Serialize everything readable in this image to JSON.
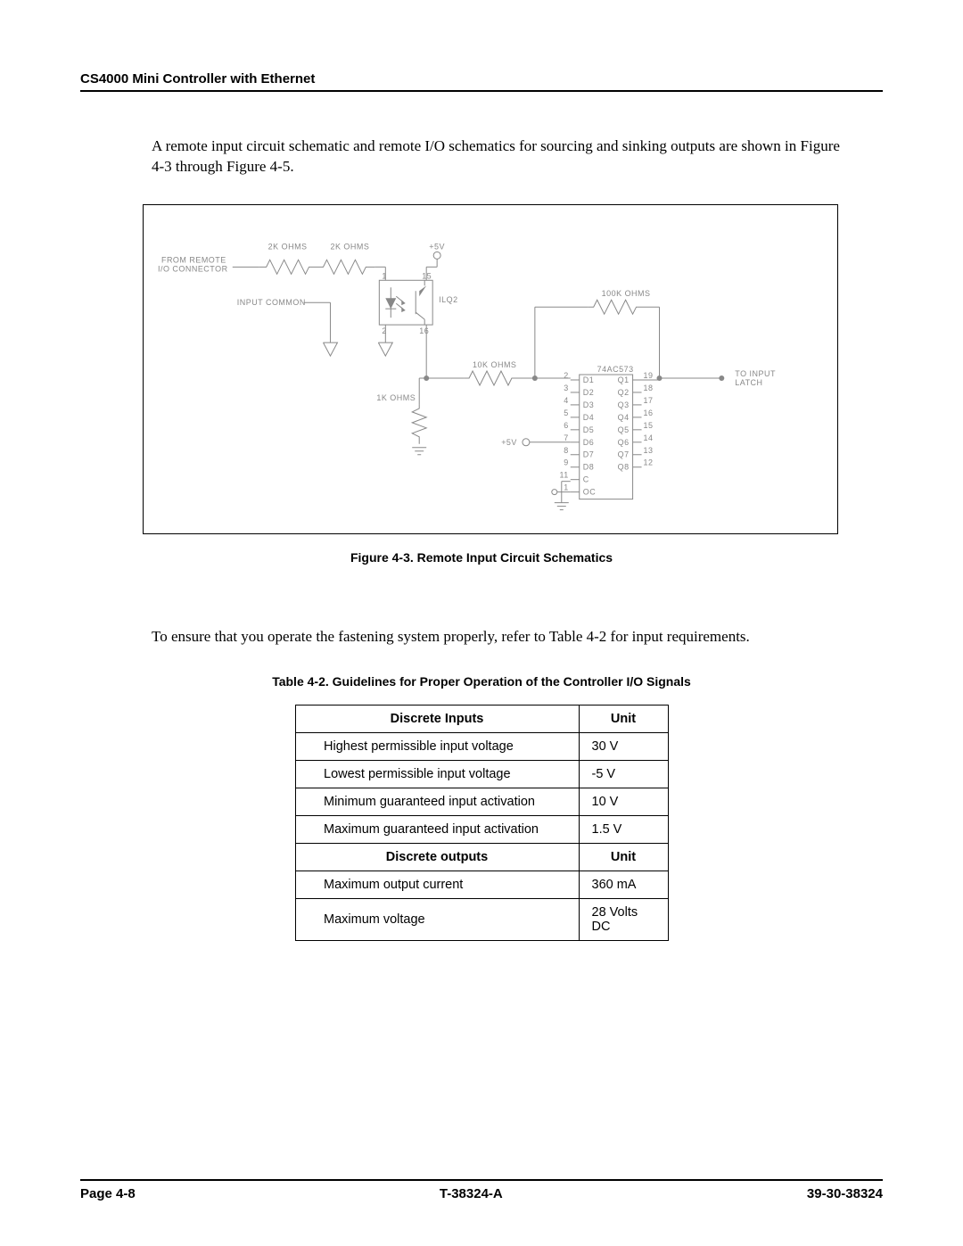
{
  "header": {
    "title": "CS4000 Mini Controller with Ethernet"
  },
  "para1": "A remote input circuit schematic and remote I/O schematics for sourcing and sinking outputs are shown in Figure 4-3 through Figure 4-5.",
  "figure": {
    "caption": "Figure 4-3.  Remote Input Circuit Schematics",
    "labels": {
      "from_remote_1": "FROM REMOTE",
      "from_remote_2": "I/O CONNECTOR",
      "r2k_a": "2K OHMS",
      "r2k_b": "2K OHMS",
      "p5v": "+5V",
      "input_common": "INPUT COMMON",
      "ilq2": "ILQ2",
      "r100k": "100K OHMS",
      "r10k": "10K OHMS",
      "r1k": "1K OHMS",
      "chip": "74AC573",
      "to_input_1": "TO INPUT",
      "to_input_2": "LATCH",
      "p5v_b": "+5V"
    },
    "chip_left_pins": [
      "2",
      "3",
      "4",
      "5",
      "6",
      "7",
      "8",
      "9",
      "11",
      "1"
    ],
    "chip_left_names": [
      "D1",
      "D2",
      "D3",
      "D4",
      "D5",
      "D6",
      "D7",
      "D8",
      "C",
      "OC"
    ],
    "chip_right_pins": [
      "19",
      "18",
      "17",
      "16",
      "15",
      "14",
      "13",
      "12"
    ],
    "chip_right_names": [
      "Q1",
      "Q2",
      "Q3",
      "Q4",
      "Q5",
      "Q6",
      "Q7",
      "Q8"
    ],
    "opto_pins": {
      "tl": "1",
      "bl": "2",
      "tr": "15",
      "br": "16"
    }
  },
  "para2": "To ensure that you operate the fastening system properly, refer to Table 4-2 for input requirements.",
  "table": {
    "title": "Table 4-2.     Guidelines for Proper Operation of the Controller I/O Signals",
    "head1": {
      "c1": "Discrete Inputs",
      "c2": "Unit"
    },
    "rows1": [
      {
        "label": "Highest permissible input voltage",
        "unit": "30 V"
      },
      {
        "label": "Lowest permissible input voltage",
        "unit": "-5 V"
      },
      {
        "label": "Minimum guaranteed input activation",
        "unit": "10 V"
      },
      {
        "label": "Maximum guaranteed input activation",
        "unit": "1.5 V"
      }
    ],
    "head2": {
      "c1": "Discrete outputs",
      "c2": "Unit"
    },
    "rows2": [
      {
        "label": "Maximum output current",
        "unit": "360 mA"
      },
      {
        "label": "Maximum voltage",
        "unit": "28 Volts DC"
      }
    ]
  },
  "footer": {
    "left": "Page 4-8",
    "center": "T-38324-A",
    "right": "39-30-38324"
  },
  "colors": {
    "schematic_stroke": "#888888",
    "text": "#000000",
    "bg": "#ffffff"
  }
}
